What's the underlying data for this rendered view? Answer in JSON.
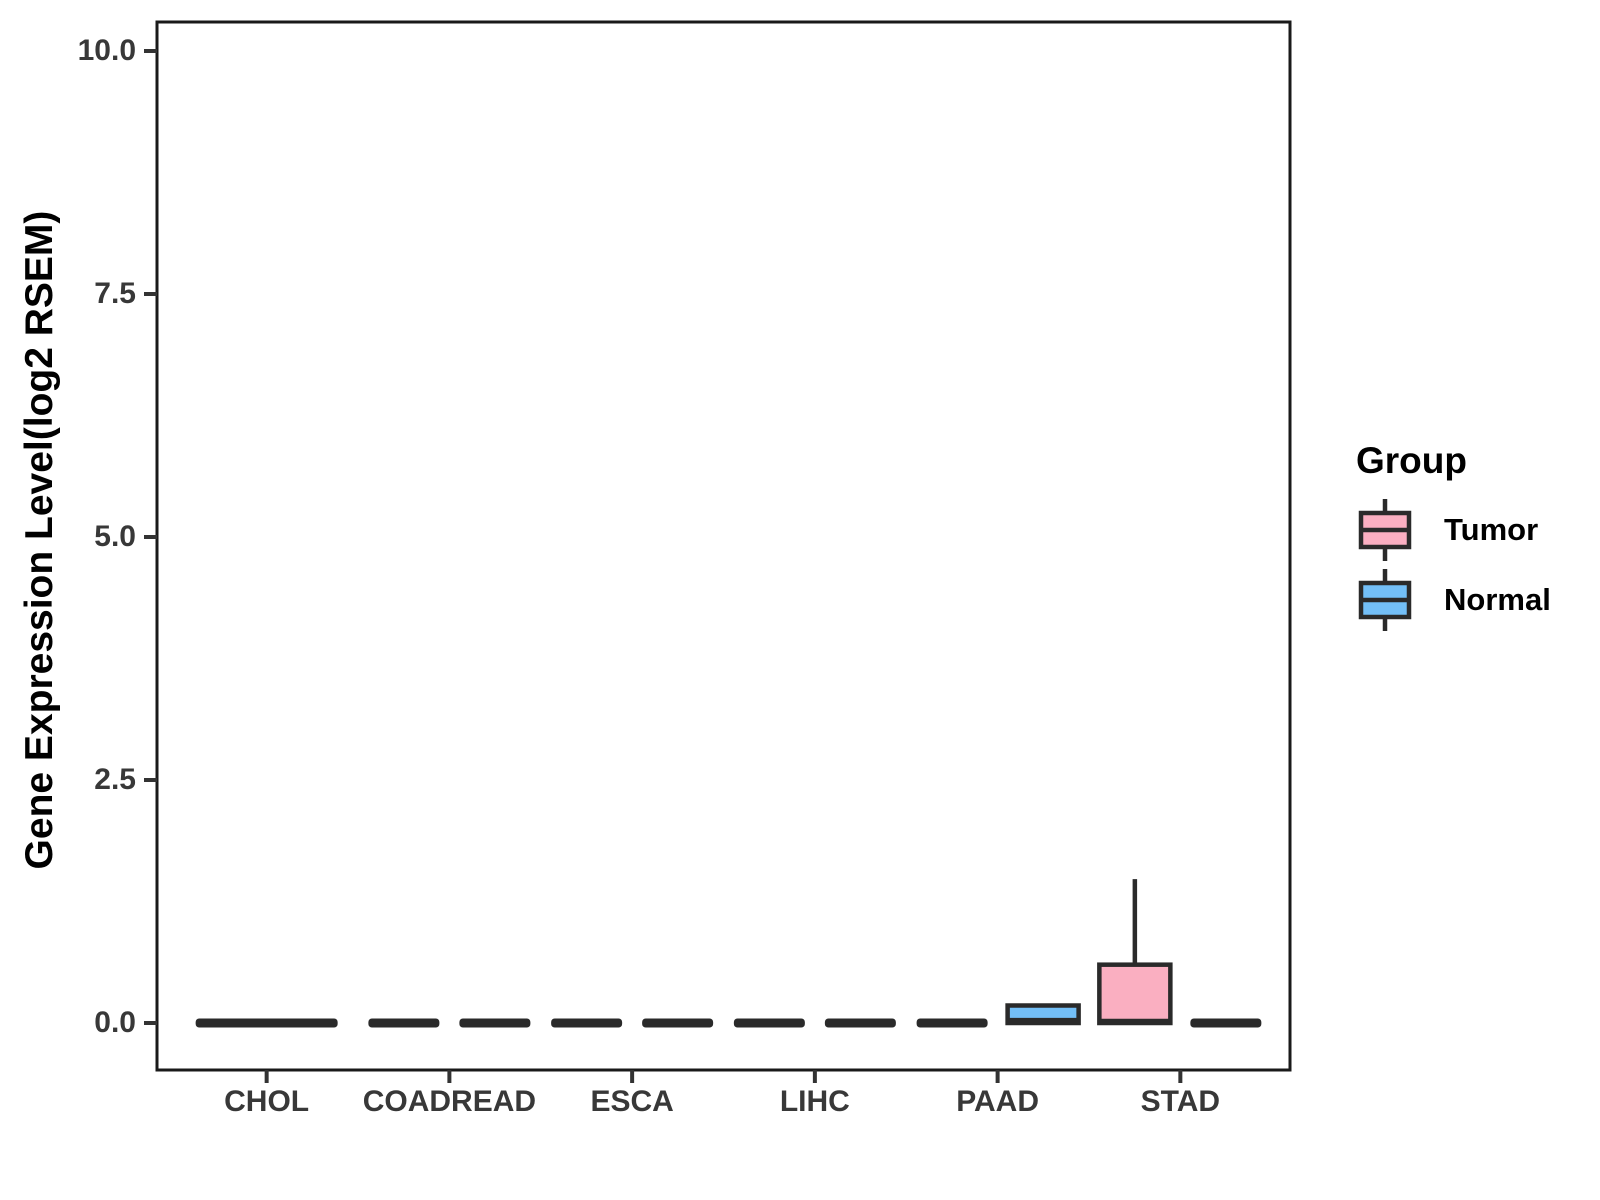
{
  "legend": {
    "title": "Group",
    "items": [
      {
        "label": "Tumor",
        "color": "#FAAFC1"
      },
      {
        "label": "Normal",
        "color": "#73BFF7"
      }
    ]
  },
  "chart_data": {
    "type": "boxplot",
    "title": "",
    "xlabel": "",
    "ylabel": "Gene Expression Level(log2 RSEM)",
    "categories": [
      "CHOL",
      "COADREAD",
      "ESCA",
      "LIHC",
      "PAAD",
      "STAD"
    ],
    "groups": [
      "Tumor",
      "Normal"
    ],
    "y_ticks": [
      {
        "value": 0.0,
        "label": "0.0"
      },
      {
        "value": 2.5,
        "label": "2.5"
      },
      {
        "value": 5.0,
        "label": "5.0"
      },
      {
        "value": 7.5,
        "label": "7.5"
      },
      {
        "value": 10.0,
        "label": "10.0"
      }
    ],
    "ylim": [
      -0.48,
      10.48
    ],
    "grid": "off",
    "legend_position": "right",
    "colors": {
      "Tumor": "#FAAFC1",
      "Normal": "#73BFF7",
      "stroke": "#2A2A2A",
      "axis_text": "#383838",
      "panel_border": "#1A1A1A"
    },
    "series": [
      {
        "name": "Tumor",
        "boxes": [
          {
            "category": "CHOL",
            "min": 0,
            "q1": 0,
            "median": 0,
            "q3": 0,
            "max": 0,
            "full_width": true
          },
          {
            "category": "COADREAD",
            "min": 0,
            "q1": 0,
            "median": 0,
            "q3": 0,
            "max": 0
          },
          {
            "category": "ESCA",
            "min": 0,
            "q1": 0,
            "median": 0,
            "q3": 0,
            "max": 0
          },
          {
            "category": "LIHC",
            "min": 0,
            "q1": 0,
            "median": 0,
            "q3": 0,
            "max": 0
          },
          {
            "category": "PAAD",
            "min": 0,
            "q1": 0,
            "median": 0,
            "q3": 0,
            "max": 0
          },
          {
            "category": "STAD",
            "min": 0,
            "q1": 0,
            "median": 0.02,
            "q3": 0.6,
            "max": 1.48
          }
        ]
      },
      {
        "name": "Normal",
        "boxes": [
          {
            "category": "COADREAD",
            "min": 0,
            "q1": 0,
            "median": 0,
            "q3": 0,
            "max": 0
          },
          {
            "category": "ESCA",
            "min": 0,
            "q1": 0,
            "median": 0,
            "q3": 0,
            "max": 0
          },
          {
            "category": "LIHC",
            "min": 0,
            "q1": 0,
            "median": 0,
            "q3": 0,
            "max": 0
          },
          {
            "category": "PAAD",
            "min": 0,
            "q1": 0,
            "median": 0.03,
            "q3": 0.18,
            "max": 0.18
          },
          {
            "category": "STAD",
            "min": 0,
            "q1": 0,
            "median": 0,
            "q3": 0,
            "max": 0
          }
        ]
      }
    ]
  }
}
